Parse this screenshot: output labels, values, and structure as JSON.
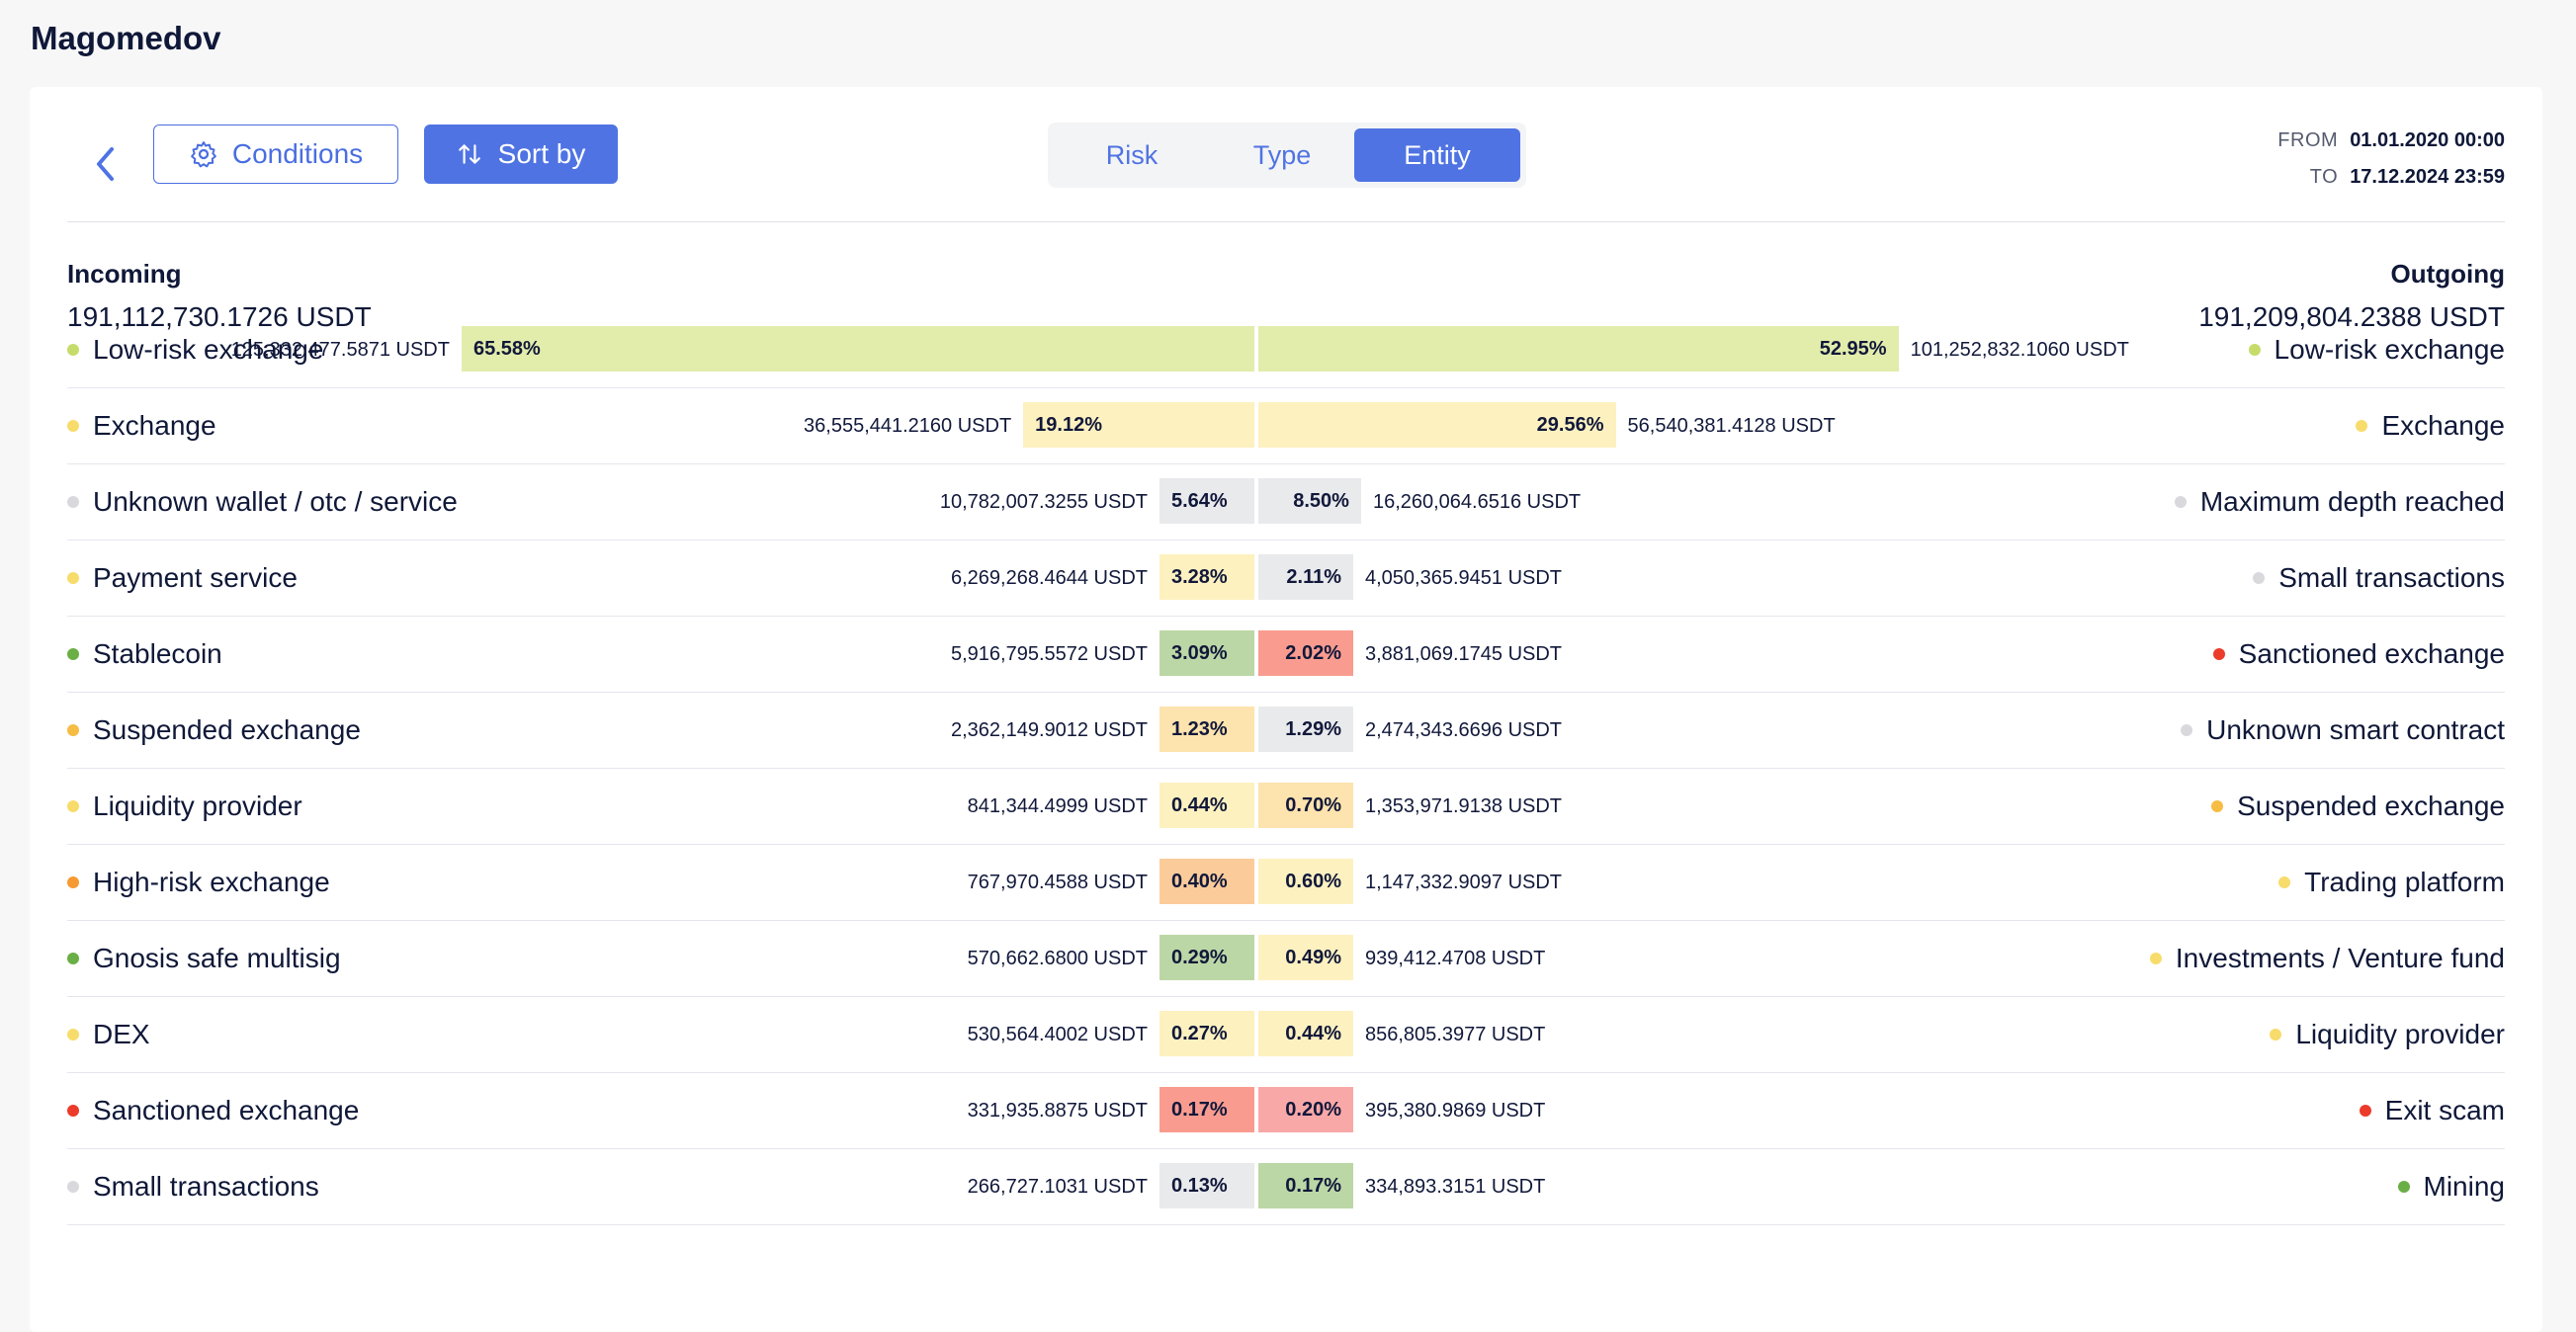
{
  "page": {
    "title": "Magomedov"
  },
  "toolbar": {
    "conditions_label": "Conditions",
    "sort_label": "Sort by",
    "tabs": [
      {
        "label": "Risk",
        "active": false
      },
      {
        "label": "Type",
        "active": false
      },
      {
        "label": "Entity",
        "active": true
      }
    ],
    "from_label": "FROM",
    "from_value": "01.01.2020 00:00",
    "to_label": "TO",
    "to_value": "17.12.2024 23:59"
  },
  "incoming": {
    "title": "Incoming",
    "total": "191,112,730.1726 USDT"
  },
  "outgoing": {
    "title": "Outgoing",
    "total": "191,209,804.2388 USDT"
  },
  "colors": {
    "accent": "#4f73e3",
    "low_risk": "#c5dc6a",
    "low_risk_bar": "#e2ecab",
    "yellow": "#f7dc6b",
    "yellow_bar": "#fdf1c0",
    "grey": "#d9d9dd",
    "grey_bar": "#e9eaec",
    "green": "#6aaf45",
    "green_bar": "#bcd7a6",
    "amber": "#f6bc44",
    "amber_bar": "#fde3ad",
    "orange": "#f59a32",
    "orange_bar": "#fccb9a",
    "red": "#ec3b2a",
    "red_bar": "#f99c8f",
    "pink_bar": "#f9a8a8"
  },
  "rows": [
    {
      "in": {
        "name": "Low-risk exchange",
        "amount": "125,332,477.5871 USDT",
        "pct": "65.58%",
        "share": 65.58,
        "dot": "#c5dc6a",
        "bar": "#e2ecab"
      },
      "out": {
        "name": "Low-risk exchange",
        "amount": "101,252,832.1060 USDT",
        "pct": "52.95%",
        "share": 52.95,
        "dot": "#c5dc6a",
        "bar": "#e2ecab"
      }
    },
    {
      "in": {
        "name": "Exchange",
        "amount": "36,555,441.2160 USDT",
        "pct": "19.12%",
        "share": 19.12,
        "dot": "#f7dc6b",
        "bar": "#fdf1c0"
      },
      "out": {
        "name": "Exchange",
        "amount": "56,540,381.4128 USDT",
        "pct": "29.56%",
        "share": 29.56,
        "dot": "#f7dc6b",
        "bar": "#fdf1c0"
      }
    },
    {
      "in": {
        "name": "Unknown wallet / otc / service",
        "amount": "10,782,007.3255 USDT",
        "pct": "5.64%",
        "share": 5.64,
        "dot": "#d9d9dd",
        "bar": "#e9eaec"
      },
      "out": {
        "name": "Maximum depth reached",
        "amount": "16,260,064.6516 USDT",
        "pct": "8.50%",
        "share": 8.5,
        "dot": "#d9d9dd",
        "bar": "#e9eaec"
      }
    },
    {
      "in": {
        "name": "Payment service",
        "amount": "6,269,268.4644 USDT",
        "pct": "3.28%",
        "share": 3.28,
        "dot": "#f7dc6b",
        "bar": "#fdf1c0"
      },
      "out": {
        "name": "Small transactions",
        "amount": "4,050,365.9451 USDT",
        "pct": "2.11%",
        "share": 2.11,
        "dot": "#d9d9dd",
        "bar": "#e9eaec"
      }
    },
    {
      "in": {
        "name": "Stablecoin",
        "amount": "5,916,795.5572 USDT",
        "pct": "3.09%",
        "share": 3.09,
        "dot": "#6aaf45",
        "bar": "#bcd7a6"
      },
      "out": {
        "name": "Sanctioned exchange",
        "amount": "3,881,069.1745 USDT",
        "pct": "2.02%",
        "share": 2.02,
        "dot": "#ec3b2a",
        "bar": "#f99c8f"
      }
    },
    {
      "in": {
        "name": "Suspended exchange",
        "amount": "2,362,149.9012 USDT",
        "pct": "1.23%",
        "share": 1.23,
        "dot": "#f6bc44",
        "bar": "#fde3ad"
      },
      "out": {
        "name": "Unknown smart contract",
        "amount": "2,474,343.6696 USDT",
        "pct": "1.29%",
        "share": 1.29,
        "dot": "#d9d9dd",
        "bar": "#e9eaec"
      }
    },
    {
      "in": {
        "name": "Liquidity provider",
        "amount": "841,344.4999 USDT",
        "pct": "0.44%",
        "share": 0.44,
        "dot": "#f7dc6b",
        "bar": "#fdf1c0"
      },
      "out": {
        "name": "Suspended exchange",
        "amount": "1,353,971.9138 USDT",
        "pct": "0.70%",
        "share": 0.7,
        "dot": "#f6bc44",
        "bar": "#fde3ad"
      }
    },
    {
      "in": {
        "name": "High-risk exchange",
        "amount": "767,970.4588 USDT",
        "pct": "0.40%",
        "share": 0.4,
        "dot": "#f59a32",
        "bar": "#fccb9a"
      },
      "out": {
        "name": "Trading platform",
        "amount": "1,147,332.9097 USDT",
        "pct": "0.60%",
        "share": 0.6,
        "dot": "#f7dc6b",
        "bar": "#fdf1c0"
      }
    },
    {
      "in": {
        "name": "Gnosis safe multisig",
        "amount": "570,662.6800 USDT",
        "pct": "0.29%",
        "share": 0.29,
        "dot": "#6aaf45",
        "bar": "#bcd7a6"
      },
      "out": {
        "name": "Investments / Venture fund",
        "amount": "939,412.4708 USDT",
        "pct": "0.49%",
        "share": 0.49,
        "dot": "#f7dc6b",
        "bar": "#fdf1c0"
      }
    },
    {
      "in": {
        "name": "DEX",
        "amount": "530,564.4002 USDT",
        "pct": "0.27%",
        "share": 0.27,
        "dot": "#f7dc6b",
        "bar": "#fdf1c0"
      },
      "out": {
        "name": "Liquidity provider",
        "amount": "856,805.3977 USDT",
        "pct": "0.44%",
        "share": 0.44,
        "dot": "#f7dc6b",
        "bar": "#fdf1c0"
      }
    },
    {
      "in": {
        "name": "Sanctioned exchange",
        "amount": "331,935.8875 USDT",
        "pct": "0.17%",
        "share": 0.17,
        "dot": "#ec3b2a",
        "bar": "#f99c8f"
      },
      "out": {
        "name": "Exit scam",
        "amount": "395,380.9869 USDT",
        "pct": "0.20%",
        "share": 0.2,
        "dot": "#ec3b2a",
        "bar": "#f9a8a8"
      }
    },
    {
      "in": {
        "name": "Small transactions",
        "amount": "266,727.1031 USDT",
        "pct": "0.13%",
        "share": 0.13,
        "dot": "#d9d9dd",
        "bar": "#e9eaec"
      },
      "out": {
        "name": "Mining",
        "amount": "334,893.3151 USDT",
        "pct": "0.17%",
        "share": 0.17,
        "dot": "#6aaf45",
        "bar": "#bcd7a6"
      }
    }
  ]
}
